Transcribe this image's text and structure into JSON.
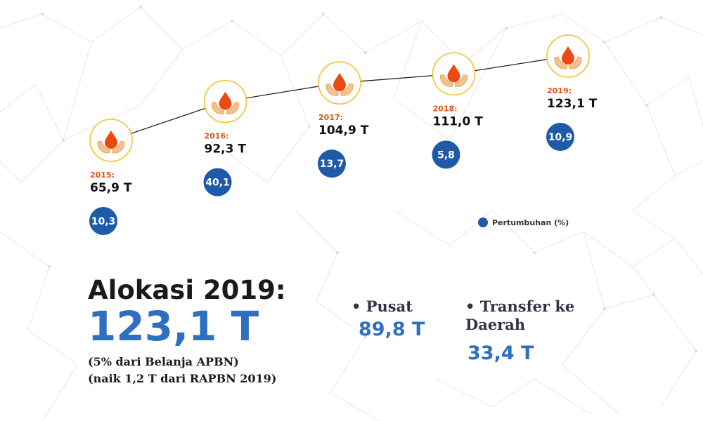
{
  "colors": {
    "accent_blue": "#2e6fc2",
    "growth_circle": "#1f5aa8",
    "year_label": "#e0521c",
    "icon_ring": "#f2c22e",
    "icon_drop": "#ec4a12",
    "icon_hands": "#f6c08a"
  },
  "chart_data": {
    "type": "line",
    "title": "",
    "xlabel": "",
    "ylabel": "",
    "categories": [
      "2015",
      "2016",
      "2017",
      "2018",
      "2019"
    ],
    "year_labels": [
      "2015:",
      "2016:",
      "2017:",
      "2018:",
      "2019:"
    ],
    "values": [
      65.9,
      92.3,
      104.9,
      111.0,
      123.1
    ],
    "value_labels": [
      "65,9 T",
      "92,3 T",
      "104,9 T",
      "111,0 T",
      "123,1 T"
    ],
    "growth": [
      10.3,
      40.1,
      13.7,
      5.8,
      10.9
    ],
    "growth_labels": [
      "10,3",
      "40,1",
      "13,7",
      "5,8",
      "10,9"
    ],
    "legend": {
      "label": "Pertumbuhan (%)",
      "position": "right"
    },
    "marker_icon": "blood-drop-hands-icon",
    "grid": false
  },
  "summary": {
    "title": "Alokasi 2019:",
    "value": "123,1 T",
    "note_1": "(5% dari Belanja APBN)",
    "note_2": "(naik 1,2 T dari RAPBN 2019)"
  },
  "components": [
    {
      "label": "• Pusat",
      "value": "89,8 T"
    },
    {
      "label": "• Transfer ke Daerah",
      "value": "33,4 T"
    }
  ]
}
